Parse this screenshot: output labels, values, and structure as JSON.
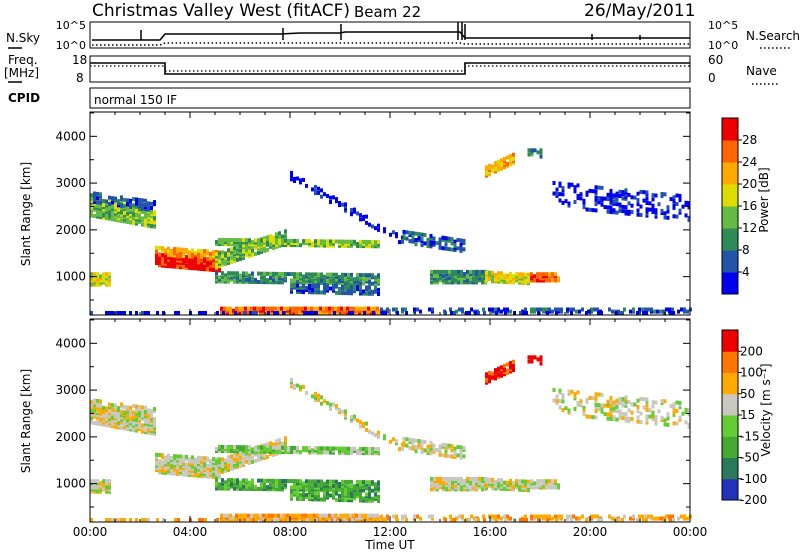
{
  "header": {
    "station": "Christmas Valley West (fitACF)",
    "beam": "Beam 22",
    "date": "26/May/2011"
  },
  "top_panels": {
    "nsky_label": "N.Sky",
    "nsky_ticks": [
      "10^5",
      "10^0"
    ],
    "nsearch_label": "N.Search",
    "nsearch_ticks": [
      "10^5",
      "10^0"
    ],
    "freq_label": "Freq.",
    "freq_unit": "[MHz]",
    "freq_ticks": [
      "18",
      "8"
    ],
    "nave_label": "Nave",
    "nave_ticks": [
      "60",
      "0"
    ],
    "cpid_label": "CPID",
    "cpid_value": "normal 150 IF"
  },
  "colors": {
    "power_scale": [
      "#0000ee",
      "#2255aa",
      "#2e8b57",
      "#66bb44",
      "#dddd00",
      "#ffaa00",
      "#ff6600",
      "#ee0000"
    ],
    "velocity_scale": [
      "#2233bb",
      "#2a7a5a",
      "#44aa33",
      "#66cc33",
      "#c8c8c0",
      "#ffaa00",
      "#ff7700",
      "#ee0000"
    ]
  },
  "chart_data": [
    {
      "type": "heatmap",
      "name": "power-panel",
      "ylabel": "Slant Range [km]",
      "yticks": [
        "1000",
        "2000",
        "3000",
        "4000"
      ],
      "ylim": [
        180,
        4520
      ],
      "xlim": [
        "00:00",
        "24:00"
      ],
      "colorbar": {
        "label": "Power [dB]",
        "ticks": [
          "4",
          "8",
          "12",
          "16",
          "20",
          "24",
          "28"
        ],
        "range": [
          0,
          32
        ]
      }
    },
    {
      "type": "heatmap",
      "name": "velocity-panel",
      "ylabel": "Slant Range [km]",
      "yticks": [
        "1000",
        "2000",
        "3000",
        "4000"
      ],
      "ylim": [
        180,
        4520
      ],
      "xlabel": "Time UT",
      "xticks": [
        "00:00",
        "04:00",
        "08:00",
        "12:00",
        "16:00",
        "20:00",
        "00:00"
      ],
      "xlim": [
        "00:00",
        "24:00"
      ],
      "colorbar": {
        "label": "Velocity [m s⁻¹]",
        "ticks": [
          "200",
          "100",
          "50",
          "15",
          "-15",
          "-50",
          "-100",
          "-200"
        ]
      }
    }
  ]
}
